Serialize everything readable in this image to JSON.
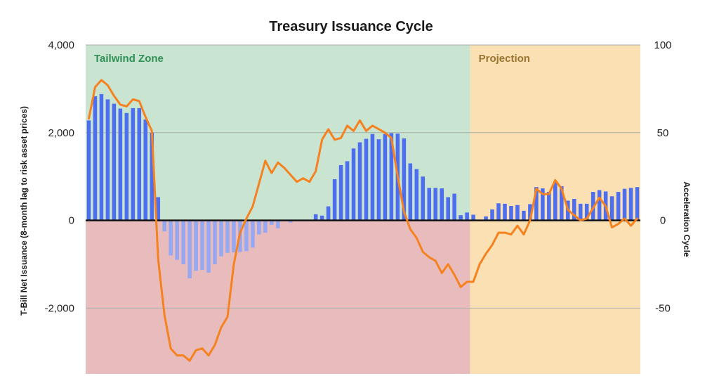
{
  "chart_data": {
    "type": "bar",
    "title": "Treasury Issuance Cycle",
    "ylabel": "T-Bill Net Issuance (8-month lag to risk asset prices)",
    "y2label": "Acceleration Cycle",
    "ylim": [
      -3500,
      4000
    ],
    "y2lim": [
      -87.5,
      100
    ],
    "yticks": [
      "4,000",
      "2,000",
      "0",
      "-2,000"
    ],
    "y2ticks": [
      "100",
      "50",
      "0",
      "-50"
    ],
    "grid": true,
    "regions": [
      {
        "name": "Tailwind Zone",
        "start": 0,
        "end": 61,
        "bands": [
          "#c9e5d2",
          "#e8bcbc"
        ],
        "label_color": "#2f8f55"
      },
      {
        "name": "Projection",
        "start": 61,
        "end": 88,
        "bands": [
          "#fae0b3",
          "#fae0b3"
        ],
        "label_color": "#9a7430"
      }
    ],
    "series": [
      {
        "type": "bar",
        "axis": "left",
        "colors": {
          "positive": "#4d6fef",
          "negative": "#97a8f2"
        },
        "values": [
          2280,
          2830,
          2880,
          2760,
          2660,
          2550,
          2450,
          2560,
          2560,
          2300,
          2000,
          530,
          -250,
          -800,
          -900,
          -1000,
          -1320,
          -1150,
          -1130,
          -1190,
          -1000,
          -820,
          -740,
          -730,
          -720,
          -700,
          -620,
          -320,
          -280,
          -100,
          -180,
          0,
          -50,
          0,
          0,
          0,
          140,
          110,
          320,
          940,
          1260,
          1350,
          1640,
          1780,
          1860,
          1970,
          1850,
          1970,
          1990,
          1980,
          1870,
          1300,
          1170,
          1000,
          740,
          740,
          730,
          530,
          610,
          120,
          180,
          130,
          0,
          90,
          250,
          390,
          380,
          330,
          350,
          220,
          370,
          760,
          730,
          650,
          890,
          780,
          450,
          490,
          380,
          380,
          650,
          690,
          660,
          550,
          650,
          720,
          740,
          760
        ]
      },
      {
        "type": "line",
        "axis": "right",
        "color": "#f5821f",
        "values": [
          58,
          76,
          80,
          77,
          71,
          66,
          65,
          69,
          68,
          59,
          51,
          -22,
          -54,
          -73,
          -77,
          -77,
          -80,
          -74,
          -73,
          -77,
          -71,
          -61,
          -55,
          -25,
          -7,
          1,
          8,
          21,
          34,
          27,
          33,
          30,
          26,
          22,
          24,
          22,
          28,
          46,
          52,
          46,
          47,
          54,
          51,
          57,
          51,
          54,
          52,
          50,
          47,
          25,
          5,
          -5,
          -10,
          -18,
          -21,
          -23,
          -30,
          -25,
          -31,
          -38,
          -35,
          -35,
          -25,
          -19,
          -14,
          -7,
          -7,
          -8,
          -3,
          -8,
          0,
          18,
          15,
          15,
          23,
          18,
          6,
          3,
          0,
          1,
          7,
          13,
          8,
          -4,
          -2,
          1,
          -3,
          1
        ]
      }
    ]
  }
}
